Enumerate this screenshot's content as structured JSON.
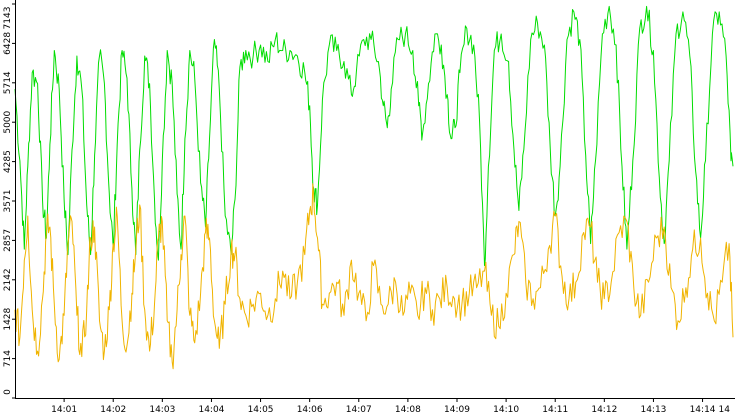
{
  "chart_data": {
    "type": "line",
    "title": "",
    "xlabel": "",
    "ylabel": "",
    "grid": false,
    "legend": "none",
    "ylim": [
      0,
      7143
    ],
    "y_ticks": [
      "0",
      "714",
      "1428",
      "2142",
      "2857",
      "3571",
      "4285",
      "5000",
      "5714",
      "6428",
      "7143"
    ],
    "x_ticks": [
      "14:01",
      "14:02",
      "14:03",
      "14:04",
      "14:05",
      "14:06",
      "14:07",
      "14:08",
      "14:09",
      "14:10",
      "14:11",
      "14:12",
      "14:13",
      "14:14",
      "14"
    ],
    "xlim_minutes": [
      0,
      14.62
    ],
    "series": [
      {
        "color": "#00dd00",
        "points": [
          [
            0.0,
            5600
          ],
          [
            0.1,
            4300
          ],
          [
            0.19,
            2700
          ],
          [
            0.26,
            4200
          ],
          [
            0.35,
            5900
          ],
          [
            0.46,
            5700
          ],
          [
            0.56,
            3600
          ],
          [
            0.64,
            2900
          ],
          [
            0.71,
            4600
          ],
          [
            0.8,
            6300
          ],
          [
            0.9,
            5600
          ],
          [
            1.0,
            3600
          ],
          [
            1.08,
            2600
          ],
          [
            1.16,
            4500
          ],
          [
            1.26,
            6200
          ],
          [
            1.36,
            5600
          ],
          [
            1.46,
            3500
          ],
          [
            1.54,
            2600
          ],
          [
            1.62,
            4400
          ],
          [
            1.72,
            6200
          ],
          [
            1.82,
            5700
          ],
          [
            1.92,
            3700
          ],
          [
            2.0,
            2700
          ],
          [
            2.08,
            4600
          ],
          [
            2.18,
            6300
          ],
          [
            2.28,
            5800
          ],
          [
            2.38,
            3800
          ],
          [
            2.46,
            2600
          ],
          [
            2.54,
            4500
          ],
          [
            2.64,
            6200
          ],
          [
            2.74,
            5700
          ],
          [
            2.84,
            3600
          ],
          [
            2.92,
            2500
          ],
          [
            3.0,
            4300
          ],
          [
            3.1,
            6300
          ],
          [
            3.2,
            5700
          ],
          [
            3.3,
            3700
          ],
          [
            3.38,
            2700
          ],
          [
            3.46,
            4700
          ],
          [
            3.56,
            6300
          ],
          [
            3.66,
            5800
          ],
          [
            3.78,
            3900
          ],
          [
            3.88,
            3100
          ],
          [
            3.96,
            4700
          ],
          [
            4.06,
            6500
          ],
          [
            4.16,
            5600
          ],
          [
            4.28,
            3300
          ],
          [
            4.4,
            2600
          ],
          [
            4.48,
            3600
          ],
          [
            4.58,
            6000
          ],
          [
            4.7,
            6300
          ],
          [
            4.85,
            6200
          ],
          [
            5.0,
            6400
          ],
          [
            5.15,
            6100
          ],
          [
            5.3,
            6500
          ],
          [
            5.45,
            6300
          ],
          [
            5.6,
            6300
          ],
          [
            5.75,
            6200
          ],
          [
            5.9,
            5900
          ],
          [
            6.0,
            5300
          ],
          [
            6.08,
            3800
          ],
          [
            6.16,
            3500
          ],
          [
            6.26,
            5400
          ],
          [
            6.4,
            6400
          ],
          [
            6.55,
            6300
          ],
          [
            6.7,
            6100
          ],
          [
            6.85,
            5500
          ],
          [
            6.95,
            5900
          ],
          [
            7.1,
            6500
          ],
          [
            7.25,
            6500
          ],
          [
            7.4,
            6100
          ],
          [
            7.5,
            5300
          ],
          [
            7.58,
            4900
          ],
          [
            7.66,
            5600
          ],
          [
            7.8,
            6500
          ],
          [
            7.95,
            6600
          ],
          [
            8.1,
            6300
          ],
          [
            8.22,
            5300
          ],
          [
            8.3,
            4800
          ],
          [
            8.42,
            5700
          ],
          [
            8.55,
            6600
          ],
          [
            8.68,
            6400
          ],
          [
            8.8,
            5500
          ],
          [
            8.88,
            4700
          ],
          [
            8.96,
            4900
          ],
          [
            9.06,
            5900
          ],
          [
            9.2,
            6700
          ],
          [
            9.34,
            6400
          ],
          [
            9.46,
            5000
          ],
          [
            9.56,
            2400
          ],
          [
            9.64,
            4200
          ],
          [
            9.76,
            6300
          ],
          [
            9.9,
            6600
          ],
          [
            10.05,
            6100
          ],
          [
            10.16,
            4500
          ],
          [
            10.26,
            3400
          ],
          [
            10.36,
            4500
          ],
          [
            10.5,
            6500
          ],
          [
            10.64,
            6800
          ],
          [
            10.78,
            6400
          ],
          [
            10.9,
            4500
          ],
          [
            11.0,
            3300
          ],
          [
            11.1,
            4200
          ],
          [
            11.24,
            6500
          ],
          [
            11.38,
            7000
          ],
          [
            11.5,
            6500
          ],
          [
            11.62,
            4400
          ],
          [
            11.72,
            2800
          ],
          [
            11.82,
            4300
          ],
          [
            11.96,
            6600
          ],
          [
            12.1,
            7100
          ],
          [
            12.24,
            6400
          ],
          [
            12.36,
            4200
          ],
          [
            12.46,
            2700
          ],
          [
            12.58,
            4300
          ],
          [
            12.72,
            6700
          ],
          [
            12.86,
            7100
          ],
          [
            13.0,
            6300
          ],
          [
            13.12,
            4000
          ],
          [
            13.22,
            2800
          ],
          [
            13.32,
            4300
          ],
          [
            13.46,
            6600
          ],
          [
            13.6,
            7000
          ],
          [
            13.74,
            6200
          ],
          [
            13.86,
            4100
          ],
          [
            13.96,
            2900
          ],
          [
            14.06,
            4300
          ],
          [
            14.2,
            6600
          ],
          [
            14.34,
            7000
          ],
          [
            14.48,
            6200
          ],
          [
            14.58,
            4300
          ],
          [
            14.62,
            4200
          ]
        ]
      },
      {
        "color": "#f0b400",
        "points": [
          [
            0.0,
            1600
          ],
          [
            0.1,
            1100
          ],
          [
            0.19,
            2500
          ],
          [
            0.26,
            3300
          ],
          [
            0.35,
            1600
          ],
          [
            0.46,
            850
          ],
          [
            0.56,
            1800
          ],
          [
            0.64,
            3000
          ],
          [
            0.71,
            3100
          ],
          [
            0.8,
            1700
          ],
          [
            0.9,
            700
          ],
          [
            1.0,
            1500
          ],
          [
            1.08,
            2800
          ],
          [
            1.16,
            3200
          ],
          [
            1.26,
            1500
          ],
          [
            1.36,
            750
          ],
          [
            1.46,
            1600
          ],
          [
            1.54,
            2900
          ],
          [
            1.62,
            3100
          ],
          [
            1.72,
            1400
          ],
          [
            1.82,
            850
          ],
          [
            1.92,
            1600
          ],
          [
            2.0,
            2800
          ],
          [
            2.08,
            3300
          ],
          [
            2.18,
            1400
          ],
          [
            2.28,
            950
          ],
          [
            2.38,
            1900
          ],
          [
            2.46,
            2700
          ],
          [
            2.54,
            3500
          ],
          [
            2.64,
            1600
          ],
          [
            2.74,
            850
          ],
          [
            2.84,
            1700
          ],
          [
            2.92,
            2900
          ],
          [
            3.0,
            3200
          ],
          [
            3.1,
            1400
          ],
          [
            3.2,
            650
          ],
          [
            3.3,
            1600
          ],
          [
            3.38,
            2600
          ],
          [
            3.46,
            3300
          ],
          [
            3.56,
            1500
          ],
          [
            3.66,
            1000
          ],
          [
            3.78,
            1900
          ],
          [
            3.88,
            3000
          ],
          [
            3.96,
            2900
          ],
          [
            4.06,
            1400
          ],
          [
            4.16,
            900
          ],
          [
            4.28,
            1700
          ],
          [
            4.4,
            2700
          ],
          [
            4.48,
            2600
          ],
          [
            4.58,
            1800
          ],
          [
            4.7,
            1500
          ],
          [
            4.85,
            1700
          ],
          [
            5.0,
            1900
          ],
          [
            5.15,
            1500
          ],
          [
            5.3,
            1800
          ],
          [
            5.45,
            2300
          ],
          [
            5.6,
            1800
          ],
          [
            5.75,
            2100
          ],
          [
            5.9,
            2600
          ],
          [
            6.0,
            3400
          ],
          [
            6.08,
            3700
          ],
          [
            6.16,
            2900
          ],
          [
            6.26,
            1700
          ],
          [
            6.4,
            1900
          ],
          [
            6.55,
            2100
          ],
          [
            6.7,
            1500
          ],
          [
            6.85,
            2500
          ],
          [
            7.0,
            1900
          ],
          [
            7.15,
            1400
          ],
          [
            7.3,
            2400
          ],
          [
            7.45,
            1700
          ],
          [
            7.6,
            1700
          ],
          [
            7.75,
            2100
          ],
          [
            7.9,
            1500
          ],
          [
            8.05,
            1900
          ],
          [
            8.2,
            1500
          ],
          [
            8.35,
            2000
          ],
          [
            8.5,
            1600
          ],
          [
            8.65,
            1800
          ],
          [
            8.8,
            2000
          ],
          [
            8.95,
            1800
          ],
          [
            9.1,
            1700
          ],
          [
            9.25,
            1900
          ],
          [
            9.4,
            2000
          ],
          [
            9.56,
            2300
          ],
          [
            9.7,
            1500
          ],
          [
            9.85,
            1300
          ],
          [
            10.0,
            1900
          ],
          [
            10.16,
            2600
          ],
          [
            10.26,
            3200
          ],
          [
            10.4,
            2100
          ],
          [
            10.55,
            1800
          ],
          [
            10.7,
            2000
          ],
          [
            10.86,
            2700
          ],
          [
            11.0,
            3300
          ],
          [
            11.14,
            2200
          ],
          [
            11.28,
            1800
          ],
          [
            11.42,
            2100
          ],
          [
            11.58,
            3000
          ],
          [
            11.72,
            3100
          ],
          [
            11.86,
            2100
          ],
          [
            12.0,
            1800
          ],
          [
            12.14,
            2100
          ],
          [
            12.3,
            3000
          ],
          [
            12.46,
            3200
          ],
          [
            12.6,
            2000
          ],
          [
            12.74,
            1500
          ],
          [
            12.9,
            2100
          ],
          [
            13.06,
            2900
          ],
          [
            13.22,
            3100
          ],
          [
            13.36,
            2000
          ],
          [
            13.5,
            1400
          ],
          [
            13.66,
            2000
          ],
          [
            13.8,
            2700
          ],
          [
            13.96,
            2900
          ],
          [
            14.1,
            1900
          ],
          [
            14.24,
            1400
          ],
          [
            14.4,
            2100
          ],
          [
            14.54,
            2800
          ],
          [
            14.62,
            1100
          ]
        ]
      }
    ]
  }
}
